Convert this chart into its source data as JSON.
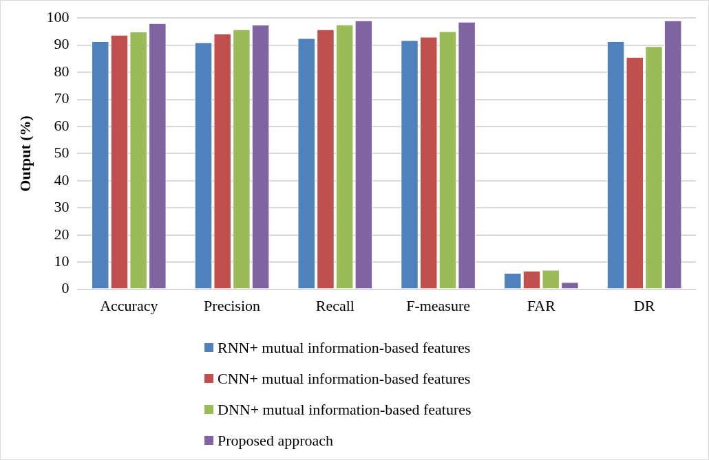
{
  "chart_data": {
    "type": "bar",
    "ylabel": "Output (%)",
    "categories": [
      "Accuracy",
      "Precision",
      "Recall",
      "F-measure",
      "FAR",
      "DR"
    ],
    "series": [
      {
        "name": "RNN+ mutual information-based features",
        "color": "#4f81bd",
        "values": [
          91.4,
          91.0,
          92.6,
          91.8,
          6.0,
          91.4
        ]
      },
      {
        "name": "CNN+ mutual information-based features",
        "color": "#c0504d",
        "values": [
          93.8,
          94.2,
          95.8,
          93.1,
          6.8,
          85.6
        ]
      },
      {
        "name": "DNN+ mutual information-based features",
        "color": "#9bbb59",
        "values": [
          95.0,
          95.8,
          97.6,
          95.1,
          7.1,
          89.6
        ]
      },
      {
        "name": "Proposed approach",
        "color": "#8064a2",
        "values": [
          98.1,
          97.5,
          99.1,
          98.6,
          2.6,
          99.1
        ]
      }
    ],
    "ylim": [
      0,
      100
    ],
    "yticks": [
      0,
      10,
      20,
      30,
      40,
      50,
      60,
      70,
      80,
      90,
      100
    ],
    "grid": "y",
    "legend": "bottom"
  }
}
